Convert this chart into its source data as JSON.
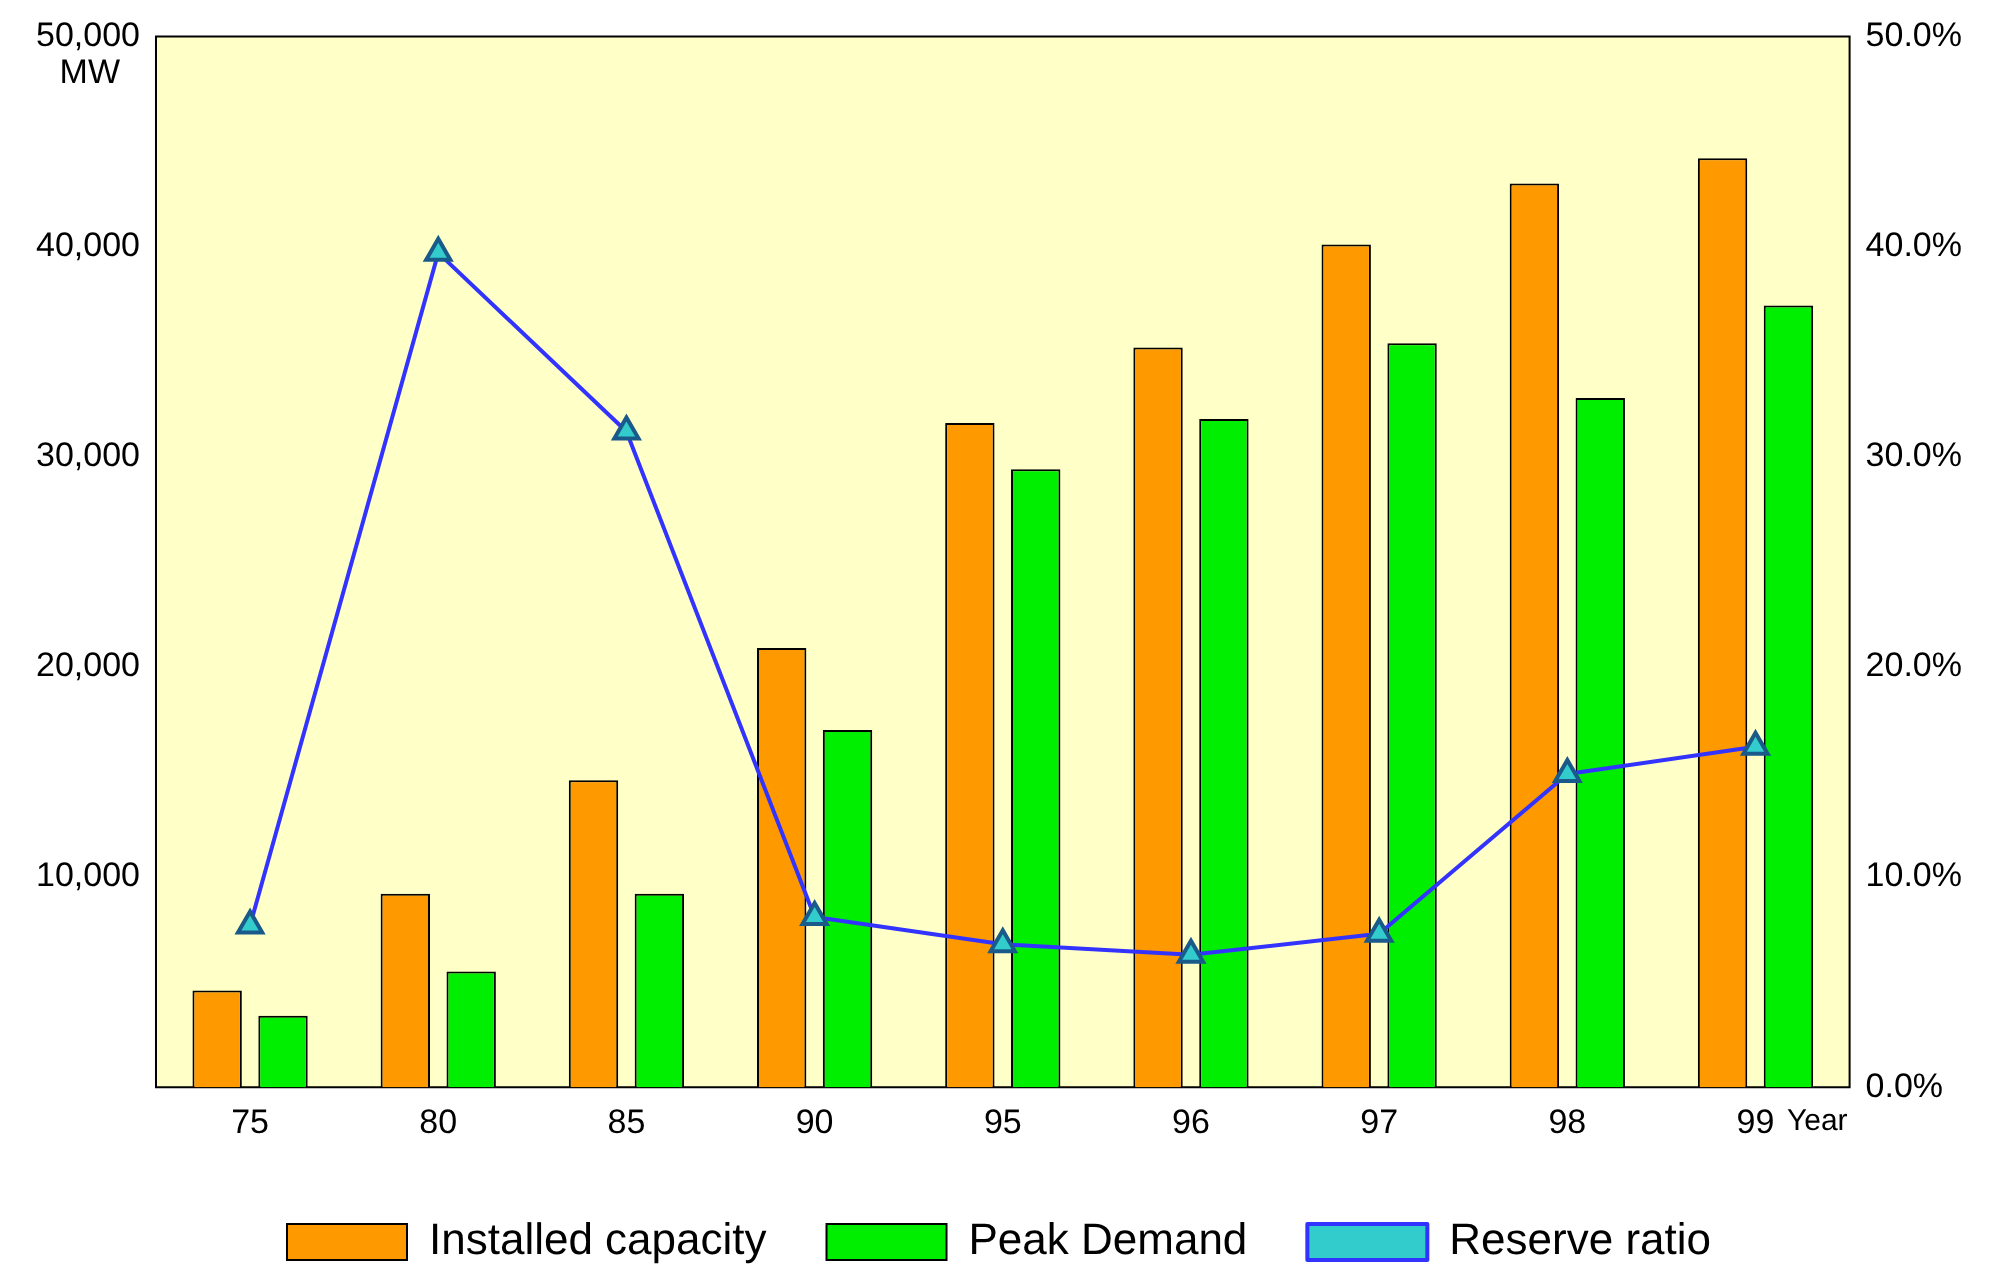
{
  "chart_data": {
    "type": "bar",
    "xlabel": "Year",
    "ylabel": "MW",
    "categories": [
      "75",
      "80",
      "85",
      "90",
      "95",
      "96",
      "97",
      "98",
      "99"
    ],
    "series": [
      {
        "name": "Installed capacity",
        "color": "#ff9900",
        "values": [
          4600,
          9200,
          14600,
          20900,
          31600,
          35200,
          40100,
          43000,
          44200
        ]
      },
      {
        "name": "Peak Demand",
        "color": "#00ee00",
        "values": [
          3400,
          5500,
          9200,
          17000,
          29400,
          31800,
          35400,
          32800,
          37200
        ]
      },
      {
        "name": "Reserve ratio",
        "type": "line",
        "axis": "y2",
        "color": "#3333ff",
        "marker": "triangle",
        "values": [
          7.7,
          39.7,
          31.2,
          8.1,
          6.8,
          6.3,
          7.3,
          14.9,
          16.2
        ]
      }
    ],
    "ylim": [
      0,
      50000
    ],
    "yticks": [
      {
        "value": 0,
        "label": null
      },
      {
        "value": 10000,
        "label": "10,000"
      },
      {
        "value": 20000,
        "label": "20,000"
      },
      {
        "value": 30000,
        "label": "30,000"
      },
      {
        "value": 40000,
        "label": "40,000"
      },
      {
        "value": 50000,
        "label": "50,000"
      }
    ],
    "y2lim": [
      0,
      50
    ],
    "y2ticks": [
      {
        "value": 0,
        "label": "0.0%"
      },
      {
        "value": 10,
        "label": "10.0%"
      },
      {
        "value": 20,
        "label": "20.0%"
      },
      {
        "value": 30,
        "label": "30.0%"
      },
      {
        "value": 40,
        "label": "40.0%"
      },
      {
        "value": 50,
        "label": "50.0%"
      }
    ],
    "grid": false,
    "legend": "bottom"
  }
}
